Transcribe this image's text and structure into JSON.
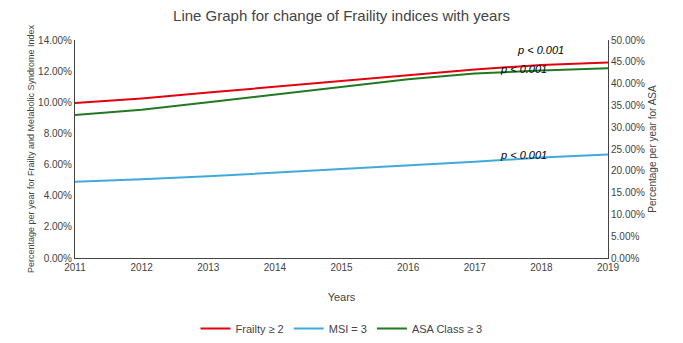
{
  "chart_data": {
    "type": "line",
    "title": "Line Graph for change of Fraility indices with years",
    "xlabel": "Years",
    "ylabel": "Percentage per year for Frailty and Metabolic Syndrome Index",
    "y2label": "Percentage per year for ASA",
    "x": [
      2011,
      2012,
      2013,
      2014,
      2015,
      2016,
      2017,
      2018,
      2019
    ],
    "series": [
      {
        "name": "Frailty ≥ 2",
        "color": "#e3000f",
        "values": [
          0.0995,
          0.1025,
          0.1063,
          0.11,
          0.1138,
          0.1175,
          0.121,
          0.124,
          0.1255
        ]
      },
      {
        "name": "MSI = 3",
        "color": "#41aadc",
        "values": [
          0.049,
          0.0505,
          0.0525,
          0.0548,
          0.057,
          0.0593,
          0.0618,
          0.0645,
          0.0665
        ]
      },
      {
        "name": "ASA Class ≥ 3",
        "color": "#217a21",
        "axis": "y2",
        "values": [
          0.328,
          0.34,
          0.357,
          0.375,
          0.393,
          0.41,
          0.423,
          0.43,
          0.435
        ]
      }
    ],
    "xlim": [
      2011,
      2019
    ],
    "xticks": [
      2011,
      2012,
      2013,
      2014,
      2015,
      2016,
      2017,
      2018,
      2019
    ],
    "ylim": [
      0.0,
      0.14
    ],
    "yticks": [
      {
        "value": 0.0,
        "label": "0.00%"
      },
      {
        "value": 0.02,
        "label": "2.00%"
      },
      {
        "value": 0.04,
        "label": "4.00%"
      },
      {
        "value": 0.06,
        "label": "6.00%"
      },
      {
        "value": 0.08,
        "label": "8.00%"
      },
      {
        "value": 0.1,
        "label": "10.00%"
      },
      {
        "value": 0.12,
        "label": "12.00%"
      },
      {
        "value": 0.14,
        "label": "14.00%"
      }
    ],
    "y2lim": [
      0.0,
      0.5
    ],
    "y2ticks": [
      {
        "value": 0.0,
        "label": "0.00%"
      },
      {
        "value": 0.05,
        "label": "5.00%"
      },
      {
        "value": 0.1,
        "label": "10.00%"
      },
      {
        "value": 0.15,
        "label": "15.00%"
      },
      {
        "value": 0.2,
        "label": "20.00%"
      },
      {
        "value": 0.25,
        "label": "25.00%"
      },
      {
        "value": 0.3,
        "label": "30.00%"
      },
      {
        "value": 0.35,
        "label": "35.00%"
      },
      {
        "value": 0.4,
        "label": "40.00%"
      },
      {
        "value": 0.45,
        "label": "45.00%"
      },
      {
        "value": 0.5,
        "label": "50.00%"
      }
    ],
    "annotations": [
      {
        "text": "p < 0.001",
        "x": 2017.6,
        "y": 0.1285
      },
      {
        "text": "p < 0.001",
        "x": 2017.35,
        "y": 0.4155,
        "axis": "y2"
      },
      {
        "text": "p < 0.001",
        "x": 2017.35,
        "y": 0.218,
        "axis": "y2"
      }
    ],
    "legend": "bottom",
    "grid": false
  }
}
